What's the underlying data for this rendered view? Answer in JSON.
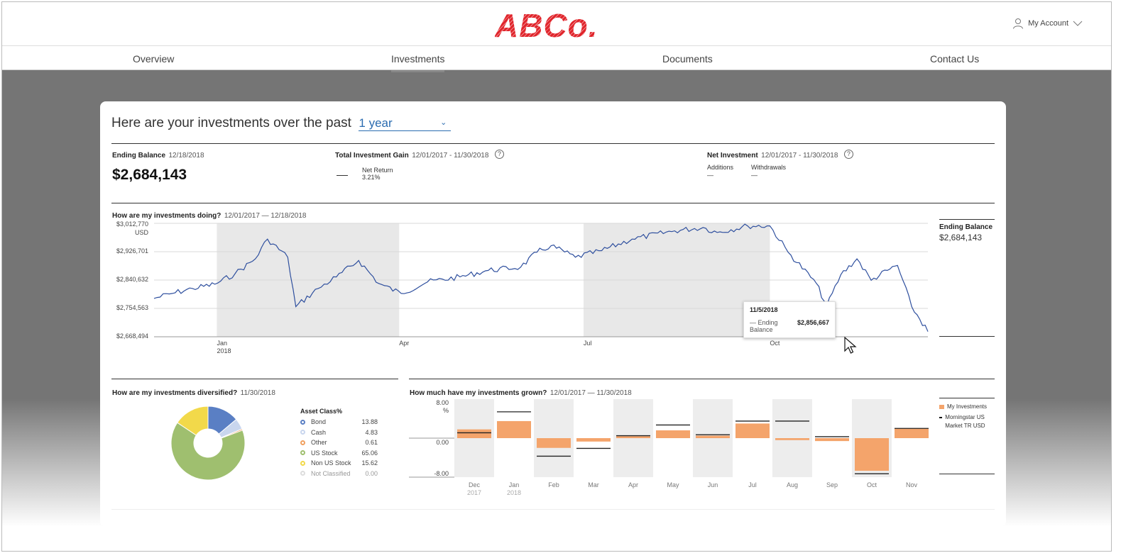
{
  "header": {
    "logo": "ABCo.",
    "account_label": "My Account"
  },
  "nav": {
    "tabs": [
      {
        "label": "Overview"
      },
      {
        "label": "Investments"
      },
      {
        "label": "Documents"
      },
      {
        "label": "Contact Us"
      }
    ],
    "active": "Investments"
  },
  "summary": {
    "title": "Here are your investments over the past",
    "period": "1 year",
    "ending_balance": {
      "label": "Ending Balance",
      "date": "12/18/2018",
      "value": "$2,684,143"
    },
    "gain": {
      "label": "Total Investment Gain",
      "range": "12/01/2017 - 11/30/2018",
      "net_return_label": "Net Return",
      "net_return_value": "3.21%"
    },
    "net_investment": {
      "label": "Net Investment",
      "range": "12/01/2017 - 11/30/2018",
      "additions_label": "Additions",
      "additions_value": "—",
      "withdrawals_label": "Withdrawals",
      "withdrawals_value": "—"
    }
  },
  "performance": {
    "title": "How are my investments doing?",
    "range": "12/01/2017 — 12/18/2018",
    "side_label": "Ending Balance",
    "side_value": "$2,684,143",
    "tooltip": {
      "date": "11/5/2018",
      "label": "Ending Balance",
      "value": "$2,856,667"
    }
  },
  "diversified": {
    "title": "How are my investments diversified?",
    "date": "11/30/2018",
    "legend_title": "Asset Class%"
  },
  "grown": {
    "title": "How much have my investments grown?",
    "range": "12/01/2017 — 11/30/2018",
    "legend": {
      "mine": "My Investments",
      "bench": "Morningstar US Market TR USD"
    }
  },
  "colors": {
    "line": "#2e4f9e",
    "orange": "#f4a46b",
    "bond": "#5a7fc4",
    "cash": "#c9d6ee",
    "other": "#f0a060",
    "usstock": "#9fbf6f",
    "nonus": "#f2d94a",
    "unclass": "#dddddd"
  },
  "chart_data": [
    {
      "type": "line",
      "ylabel": "USD",
      "ylim": [
        2668494,
        3012770
      ],
      "yticks": [
        "$3,012,770",
        "$2,926,701",
        "$2,840,632",
        "$2,754,563",
        "$2,668,494"
      ],
      "xticks": [
        {
          "label": "Jan",
          "sub": "2018",
          "date": "2018-01-01"
        },
        {
          "label": "Apr",
          "sub": "",
          "date": "2018-04-01"
        },
        {
          "label": "Jul",
          "sub": "",
          "date": "2018-07-01"
        },
        {
          "label": "Oct",
          "sub": "",
          "date": "2018-10-01"
        }
      ],
      "shaded_quarters": [
        [
          "2018-01-01",
          "2018-04-01"
        ],
        [
          "2018-07-01",
          "2018-10-01"
        ]
      ],
      "x_range": [
        "2017-12-01",
        "2018-12-18"
      ],
      "series": [
        {
          "points": [
            [
              "2017-12-01",
              2785000
            ],
            [
              "2017-12-10",
              2800000
            ],
            [
              "2017-12-20",
              2815000
            ],
            [
              "2017-12-31",
              2828000
            ],
            [
              "2018-01-10",
              2860000
            ],
            [
              "2018-01-20",
              2905000
            ],
            [
              "2018-01-26",
              2965000
            ],
            [
              "2018-02-05",
              2910000
            ],
            [
              "2018-02-09",
              2760000
            ],
            [
              "2018-02-20",
              2815000
            ],
            [
              "2018-03-01",
              2850000
            ],
            [
              "2018-03-12",
              2900000
            ],
            [
              "2018-03-22",
              2830000
            ],
            [
              "2018-04-02",
              2800000
            ],
            [
              "2018-04-15",
              2835000
            ],
            [
              "2018-05-01",
              2850000
            ],
            [
              "2018-05-15",
              2870000
            ],
            [
              "2018-05-31",
              2880000
            ],
            [
              "2018-06-08",
              2925000
            ],
            [
              "2018-06-15",
              2945000
            ],
            [
              "2018-06-27",
              2910000
            ],
            [
              "2018-07-10",
              2930000
            ],
            [
              "2018-07-25",
              2965000
            ],
            [
              "2018-08-15",
              2990000
            ],
            [
              "2018-08-29",
              3000000
            ],
            [
              "2018-09-05",
              2985000
            ],
            [
              "2018-09-20",
              3005000
            ],
            [
              "2018-10-01",
              3005000
            ],
            [
              "2018-10-10",
              2925000
            ],
            [
              "2018-10-24",
              2830000
            ],
            [
              "2018-10-29",
              2760000
            ],
            [
              "2018-11-05",
              2856667
            ],
            [
              "2018-11-13",
              2905000
            ],
            [
              "2018-11-20",
              2840000
            ],
            [
              "2018-11-28",
              2870000
            ],
            [
              "2018-12-03",
              2885000
            ],
            [
              "2018-12-10",
              2760000
            ],
            [
              "2018-12-18",
              2684143
            ]
          ]
        }
      ]
    },
    {
      "type": "pie",
      "legend": [
        {
          "name": "Bond",
          "value": 13.88,
          "display": "13.88"
        },
        {
          "name": "Cash",
          "value": 4.83,
          "display": "4.83"
        },
        {
          "name": "Other",
          "value": 0.61,
          "display": "0.61"
        },
        {
          "name": "US Stock",
          "value": 65.06,
          "display": "65.06"
        },
        {
          "name": "Non US Stock",
          "value": 15.62,
          "display": "15.62"
        },
        {
          "name": "Not Classified",
          "value": 0.0,
          "display": "0.00"
        }
      ]
    },
    {
      "type": "bar",
      "ylim": [
        -8,
        8
      ],
      "yticks": [
        "8.00 %",
        "0.00",
        "-8.00"
      ],
      "categories": [
        {
          "label": "Dec",
          "sub": "2017"
        },
        {
          "label": "Jan",
          "sub": "2018"
        },
        {
          "label": "Feb",
          "sub": ""
        },
        {
          "label": "Mar",
          "sub": ""
        },
        {
          "label": "Apr",
          "sub": ""
        },
        {
          "label": "May",
          "sub": ""
        },
        {
          "label": "Jun",
          "sub": ""
        },
        {
          "label": "Jul",
          "sub": ""
        },
        {
          "label": "Aug",
          "sub": ""
        },
        {
          "label": "Sep",
          "sub": ""
        },
        {
          "label": "Oct",
          "sub": ""
        },
        {
          "label": "Nov",
          "sub": ""
        }
      ],
      "series": [
        {
          "name": "My Investments",
          "values": [
            1.8,
            3.5,
            -2.0,
            -0.7,
            0.4,
            1.6,
            0.5,
            3.0,
            -0.4,
            -0.6,
            -6.7,
            2.0
          ]
        },
        {
          "name": "Morningstar US Market TR USD",
          "values": [
            1.1,
            5.4,
            -3.7,
            -2.1,
            0.5,
            2.7,
            0.7,
            3.5,
            3.5,
            0.3,
            -7.3,
            2.0
          ]
        }
      ]
    }
  ]
}
